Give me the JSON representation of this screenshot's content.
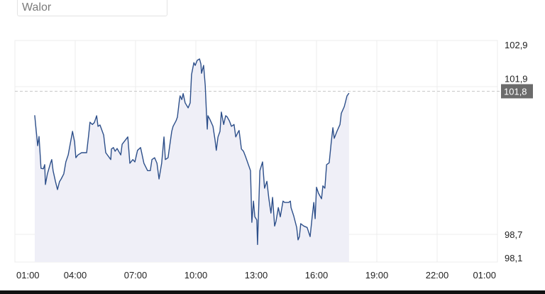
{
  "search": {
    "placeholder": "Walor"
  },
  "colors": {
    "line": "#2d4f8a",
    "fill": "#efeff7",
    "grid": "#ececec",
    "badge": "#6b6b6b",
    "badge_text": "#ffffff",
    "dash": "#c8c8c8"
  },
  "chart_data": {
    "type": "area",
    "title": "",
    "xlabel": "",
    "ylabel": "",
    "x_ticks": [
      "01:00",
      "04:00",
      "07:00",
      "10:00",
      "13:00",
      "16:00",
      "19:00",
      "22:00",
      "01:00"
    ],
    "y_ticks": [
      "102,9",
      "101,9",
      "98,7",
      "98,1"
    ],
    "y_tick_values": [
      102.9,
      101.9,
      98.7,
      98.1
    ],
    "ylim": [
      98.1,
      102.9
    ],
    "xlim": [
      "01:00",
      "01:00 (+1 day)"
    ],
    "grid": true,
    "current_value": 101.8,
    "current_value_label": "101,8",
    "points": [
      [
        "01:59",
        101.28
      ],
      [
        "02:08",
        100.62
      ],
      [
        "02:12",
        100.82
      ],
      [
        "02:18",
        100.13
      ],
      [
        "02:25",
        100.12
      ],
      [
        "02:29",
        100.21
      ],
      [
        "02:31",
        99.78
      ],
      [
        "02:37",
        100.01
      ],
      [
        "02:46",
        100.24
      ],
      [
        "02:50",
        100.32
      ],
      [
        "02:54",
        100.08
      ],
      [
        "03:01",
        99.85
      ],
      [
        "03:07",
        99.67
      ],
      [
        "03:13",
        99.84
      ],
      [
        "03:18",
        99.9
      ],
      [
        "03:26",
        100.01
      ],
      [
        "03:32",
        100.27
      ],
      [
        "03:39",
        100.42
      ],
      [
        "03:52",
        100.93
      ],
      [
        "03:58",
        100.7
      ],
      [
        "04:02",
        100.36
      ],
      [
        "04:08",
        100.42
      ],
      [
        "04:19",
        100.47
      ],
      [
        "04:34",
        100.47
      ],
      [
        "04:40",
        100.85
      ],
      [
        "04:44",
        101.13
      ],
      [
        "04:51",
        101.08
      ],
      [
        "04:57",
        101.12
      ],
      [
        "05:04",
        101.27
      ],
      [
        "05:08",
        101.04
      ],
      [
        "05:14",
        101.07
      ],
      [
        "05:25",
        100.85
      ],
      [
        "05:31",
        100.47
      ],
      [
        "05:46",
        100.32
      ],
      [
        "05:48",
        100.55
      ],
      [
        "05:54",
        100.58
      ],
      [
        "05:59",
        100.5
      ],
      [
        "06:05",
        100.56
      ],
      [
        "06:16",
        100.42
      ],
      [
        "06:20",
        100.65
      ],
      [
        "06:37",
        100.81
      ],
      [
        "06:43",
        100.24
      ],
      [
        "06:52",
        100.32
      ],
      [
        "06:58",
        100.27
      ],
      [
        "07:06",
        100.52
      ],
      [
        "07:15",
        100.58
      ],
      [
        "07:25",
        100.24
      ],
      [
        "07:36",
        100.08
      ],
      [
        "07:44",
        100.08
      ],
      [
        "07:49",
        100.32
      ],
      [
        "07:57",
        100.36
      ],
      [
        "08:04",
        100.24
      ],
      [
        "08:10",
        99.9
      ],
      [
        "08:18",
        100.24
      ],
      [
        "08:25",
        100.81
      ],
      [
        "08:29",
        100.32
      ],
      [
        "08:37",
        100.36
      ],
      [
        "08:48",
        100.93
      ],
      [
        "08:52",
        101.04
      ],
      [
        "09:01",
        101.16
      ],
      [
        "09:05",
        101.24
      ],
      [
        "09:11",
        101.62
      ],
      [
        "09:13",
        101.7
      ],
      [
        "09:18",
        101.62
      ],
      [
        "09:22",
        101.75
      ],
      [
        "09:28",
        101.55
      ],
      [
        "09:37",
        101.44
      ],
      [
        "09:43",
        101.55
      ],
      [
        "09:47",
        102.16
      ],
      [
        "09:54",
        102.42
      ],
      [
        "09:58",
        102.36
      ],
      [
        "10:04",
        102.47
      ],
      [
        "10:11",
        102.5
      ],
      [
        "10:15",
        102.39
      ],
      [
        "10:17",
        102.19
      ],
      [
        "10:23",
        102.36
      ],
      [
        "10:28",
        101.93
      ],
      [
        "10:32",
        101.27
      ],
      [
        "10:34",
        100.98
      ],
      [
        "10:36",
        101.27
      ],
      [
        "10:42",
        101.19
      ],
      [
        "10:51",
        101.04
      ],
      [
        "10:57",
        100.76
      ],
      [
        "11:01",
        100.52
      ],
      [
        "11:06",
        100.81
      ],
      [
        "11:12",
        100.93
      ],
      [
        "11:16",
        101.35
      ],
      [
        "11:23",
        101.08
      ],
      [
        "11:29",
        101.27
      ],
      [
        "11:33",
        101.25
      ],
      [
        "11:40",
        101.16
      ],
      [
        "11:46",
        101.04
      ],
      [
        "11:54",
        101.08
      ],
      [
        "11:59",
        100.81
      ],
      [
        "12:05",
        100.9
      ],
      [
        "12:09",
        100.95
      ],
      [
        "12:16",
        100.55
      ],
      [
        "12:22",
        100.5
      ],
      [
        "12:28",
        100.39
      ],
      [
        "12:43",
        100.08
      ],
      [
        "12:47",
        98.96
      ],
      [
        "12:52",
        99.42
      ],
      [
        "12:56",
        99.08
      ],
      [
        "13:02",
        99.01
      ],
      [
        "13:04",
        98.48
      ],
      [
        "13:11",
        100.08
      ],
      [
        "13:19",
        100.27
      ],
      [
        "13:25",
        99.7
      ],
      [
        "13:32",
        99.85
      ],
      [
        "13:38",
        99.47
      ],
      [
        "13:44",
        99.16
      ],
      [
        "13:49",
        99.5
      ],
      [
        "13:55",
        98.88
      ],
      [
        "13:59",
        98.98
      ],
      [
        "14:06",
        99.28
      ],
      [
        "14:12",
        99.08
      ],
      [
        "14:20",
        99.42
      ],
      [
        "14:25",
        99.39
      ],
      [
        "14:37",
        99.39
      ],
      [
        "14:42",
        99.42
      ],
      [
        "14:44",
        99.28
      ],
      [
        "14:52",
        99.1
      ],
      [
        "15:01",
        98.85
      ],
      [
        "15:05",
        98.58
      ],
      [
        "15:09",
        98.65
      ],
      [
        "15:13",
        98.93
      ],
      [
        "15:22",
        98.88
      ],
      [
        "15:32",
        98.85
      ],
      [
        "15:41",
        98.65
      ],
      [
        "15:47",
        99.08
      ],
      [
        "15:52",
        99.39
      ],
      [
        "15:56",
        99.04
      ],
      [
        "16:00",
        99.72
      ],
      [
        "16:06",
        99.59
      ],
      [
        "16:15",
        99.47
      ],
      [
        "16:19",
        99.75
      ],
      [
        "16:25",
        99.7
      ],
      [
        "16:30",
        100.21
      ],
      [
        "16:38",
        100.25
      ],
      [
        "16:44",
        100.7
      ],
      [
        "16:49",
        101.01
      ],
      [
        "16:53",
        100.78
      ],
      [
        "17:01",
        100.93
      ],
      [
        "17:10",
        101.08
      ],
      [
        "17:14",
        101.32
      ],
      [
        "17:23",
        101.47
      ],
      [
        "17:31",
        101.7
      ],
      [
        "17:37",
        101.76
      ]
    ]
  }
}
